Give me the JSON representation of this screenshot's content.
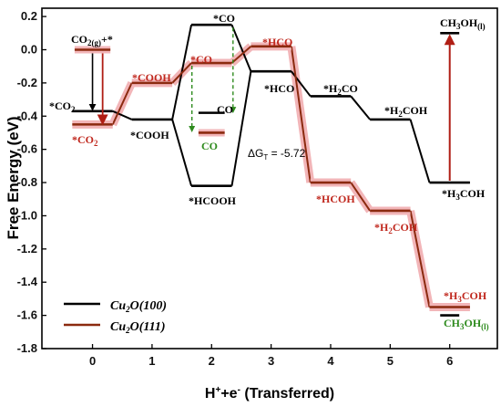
{
  "chart_data": {
    "type": "line",
    "xlabel": "H⁺+e⁻ (Transferred)",
    "ylabel": "Free Energy (eV)",
    "xlim": [
      -0.85,
      6.8
    ],
    "ylim": [
      -1.8,
      0.25
    ],
    "xticks": [
      "0",
      "1",
      "2",
      "3",
      "4",
      "5",
      "6"
    ],
    "yticks": [
      "0.2",
      "0.0",
      "-0.2",
      "-0.4",
      "-0.6",
      "-0.8",
      "-1.0",
      "-1.2",
      "-1.4",
      "-1.6",
      "-1.8"
    ],
    "series": [
      {
        "name": "Cu₂O(100)",
        "color": "#000000",
        "steps": [
          {
            "x": 0,
            "y": -0.37
          },
          {
            "x": 1,
            "y": -0.42
          },
          {
            "x": 2,
            "y": 0.15
          },
          {
            "x": 2,
            "y": -0.82
          },
          {
            "x": 3,
            "y": -0.13
          },
          {
            "x": 4,
            "y": -0.28
          },
          {
            "x": 5,
            "y": -0.42
          },
          {
            "x": 6,
            "y": -0.8
          }
        ]
      },
      {
        "name": "Cu₂O(111)",
        "color": "#8b2a0f",
        "steps": [
          {
            "x": 0,
            "y": -0.45
          },
          {
            "x": 1,
            "y": -0.2
          },
          {
            "x": 2,
            "y": -0.08
          },
          {
            "x": 3,
            "y": 0.02
          },
          {
            "x": 4,
            "y": -0.8
          },
          {
            "x": 5,
            "y": -0.97
          },
          {
            "x": 6,
            "y": -1.55
          }
        ]
      }
    ],
    "extra_levels": [
      {
        "name": "CO₂(g)+*",
        "x": 0,
        "y": 0.0,
        "color": "#8b2a0f"
      },
      {
        "name": "CO (100)",
        "x": 2,
        "y": -0.38,
        "color": "#000000"
      },
      {
        "name": "CO (111)",
        "x": 2,
        "y": -0.5,
        "color": "#8b2a0f"
      },
      {
        "name": "CH₃OH(l) top",
        "x": 6,
        "y": 0.1,
        "color": "#000000"
      },
      {
        "name": "CH₃OH(l) bottom",
        "x": 6,
        "y": -1.6,
        "color": "#000000"
      }
    ],
    "delta_g_text": "ΔG",
    "delta_g_sub": "T",
    "delta_g_value": " = -5.72",
    "labels": [
      {
        "text": "*CO",
        "color": "#000000"
      },
      {
        "text": "*HCO",
        "color": "#c0281e"
      },
      {
        "text": "CO",
        "color": "#000000"
      },
      {
        "text": "CO",
        "color": "#2e8b1e"
      },
      {
        "text": "*CO",
        "color": "#c0281e"
      },
      {
        "text": "*COOH",
        "color": "#c0281e"
      },
      {
        "text": "*COOH",
        "color": "#000000"
      },
      {
        "text": "*HCOOH",
        "color": "#000000"
      },
      {
        "text": "*HCO",
        "color": "#000000"
      },
      {
        "text": "*HCOH",
        "color": "#c0281e"
      },
      {
        "text": "*H",
        "sub": "2",
        "rest": "CO",
        "color": "#000000"
      },
      {
        "text": "*H",
        "sub": "2",
        "rest": "COH",
        "color": "#000000"
      },
      {
        "text": "*H",
        "sub": "2",
        "rest": "COH",
        "color": "#c0281e"
      },
      {
        "text": "*H",
        "sub": "3",
        "rest": "COH",
        "color": "#000000"
      },
      {
        "text": "*H",
        "sub": "3",
        "rest": "COH",
        "color": "#c0281e"
      },
      {
        "text": "CH",
        "sub": "3",
        "rest": "OH",
        "sub2": "(l)",
        "color": "#000000"
      },
      {
        "text": "CH",
        "sub": "3",
        "rest": "OH",
        "sub2": "(l)",
        "color": "#2e8b1e"
      },
      {
        "text": "CO",
        "sub": "2(g)",
        "rest": "+*",
        "color": "#000000"
      },
      {
        "text": "*CO",
        "sub": "2",
        "rest": "",
        "color": "#000000"
      },
      {
        "text": "*CO",
        "sub": "2",
        "rest": "",
        "color": "#c0281e"
      }
    ],
    "legend_position": "bottom-left",
    "grid": false
  }
}
